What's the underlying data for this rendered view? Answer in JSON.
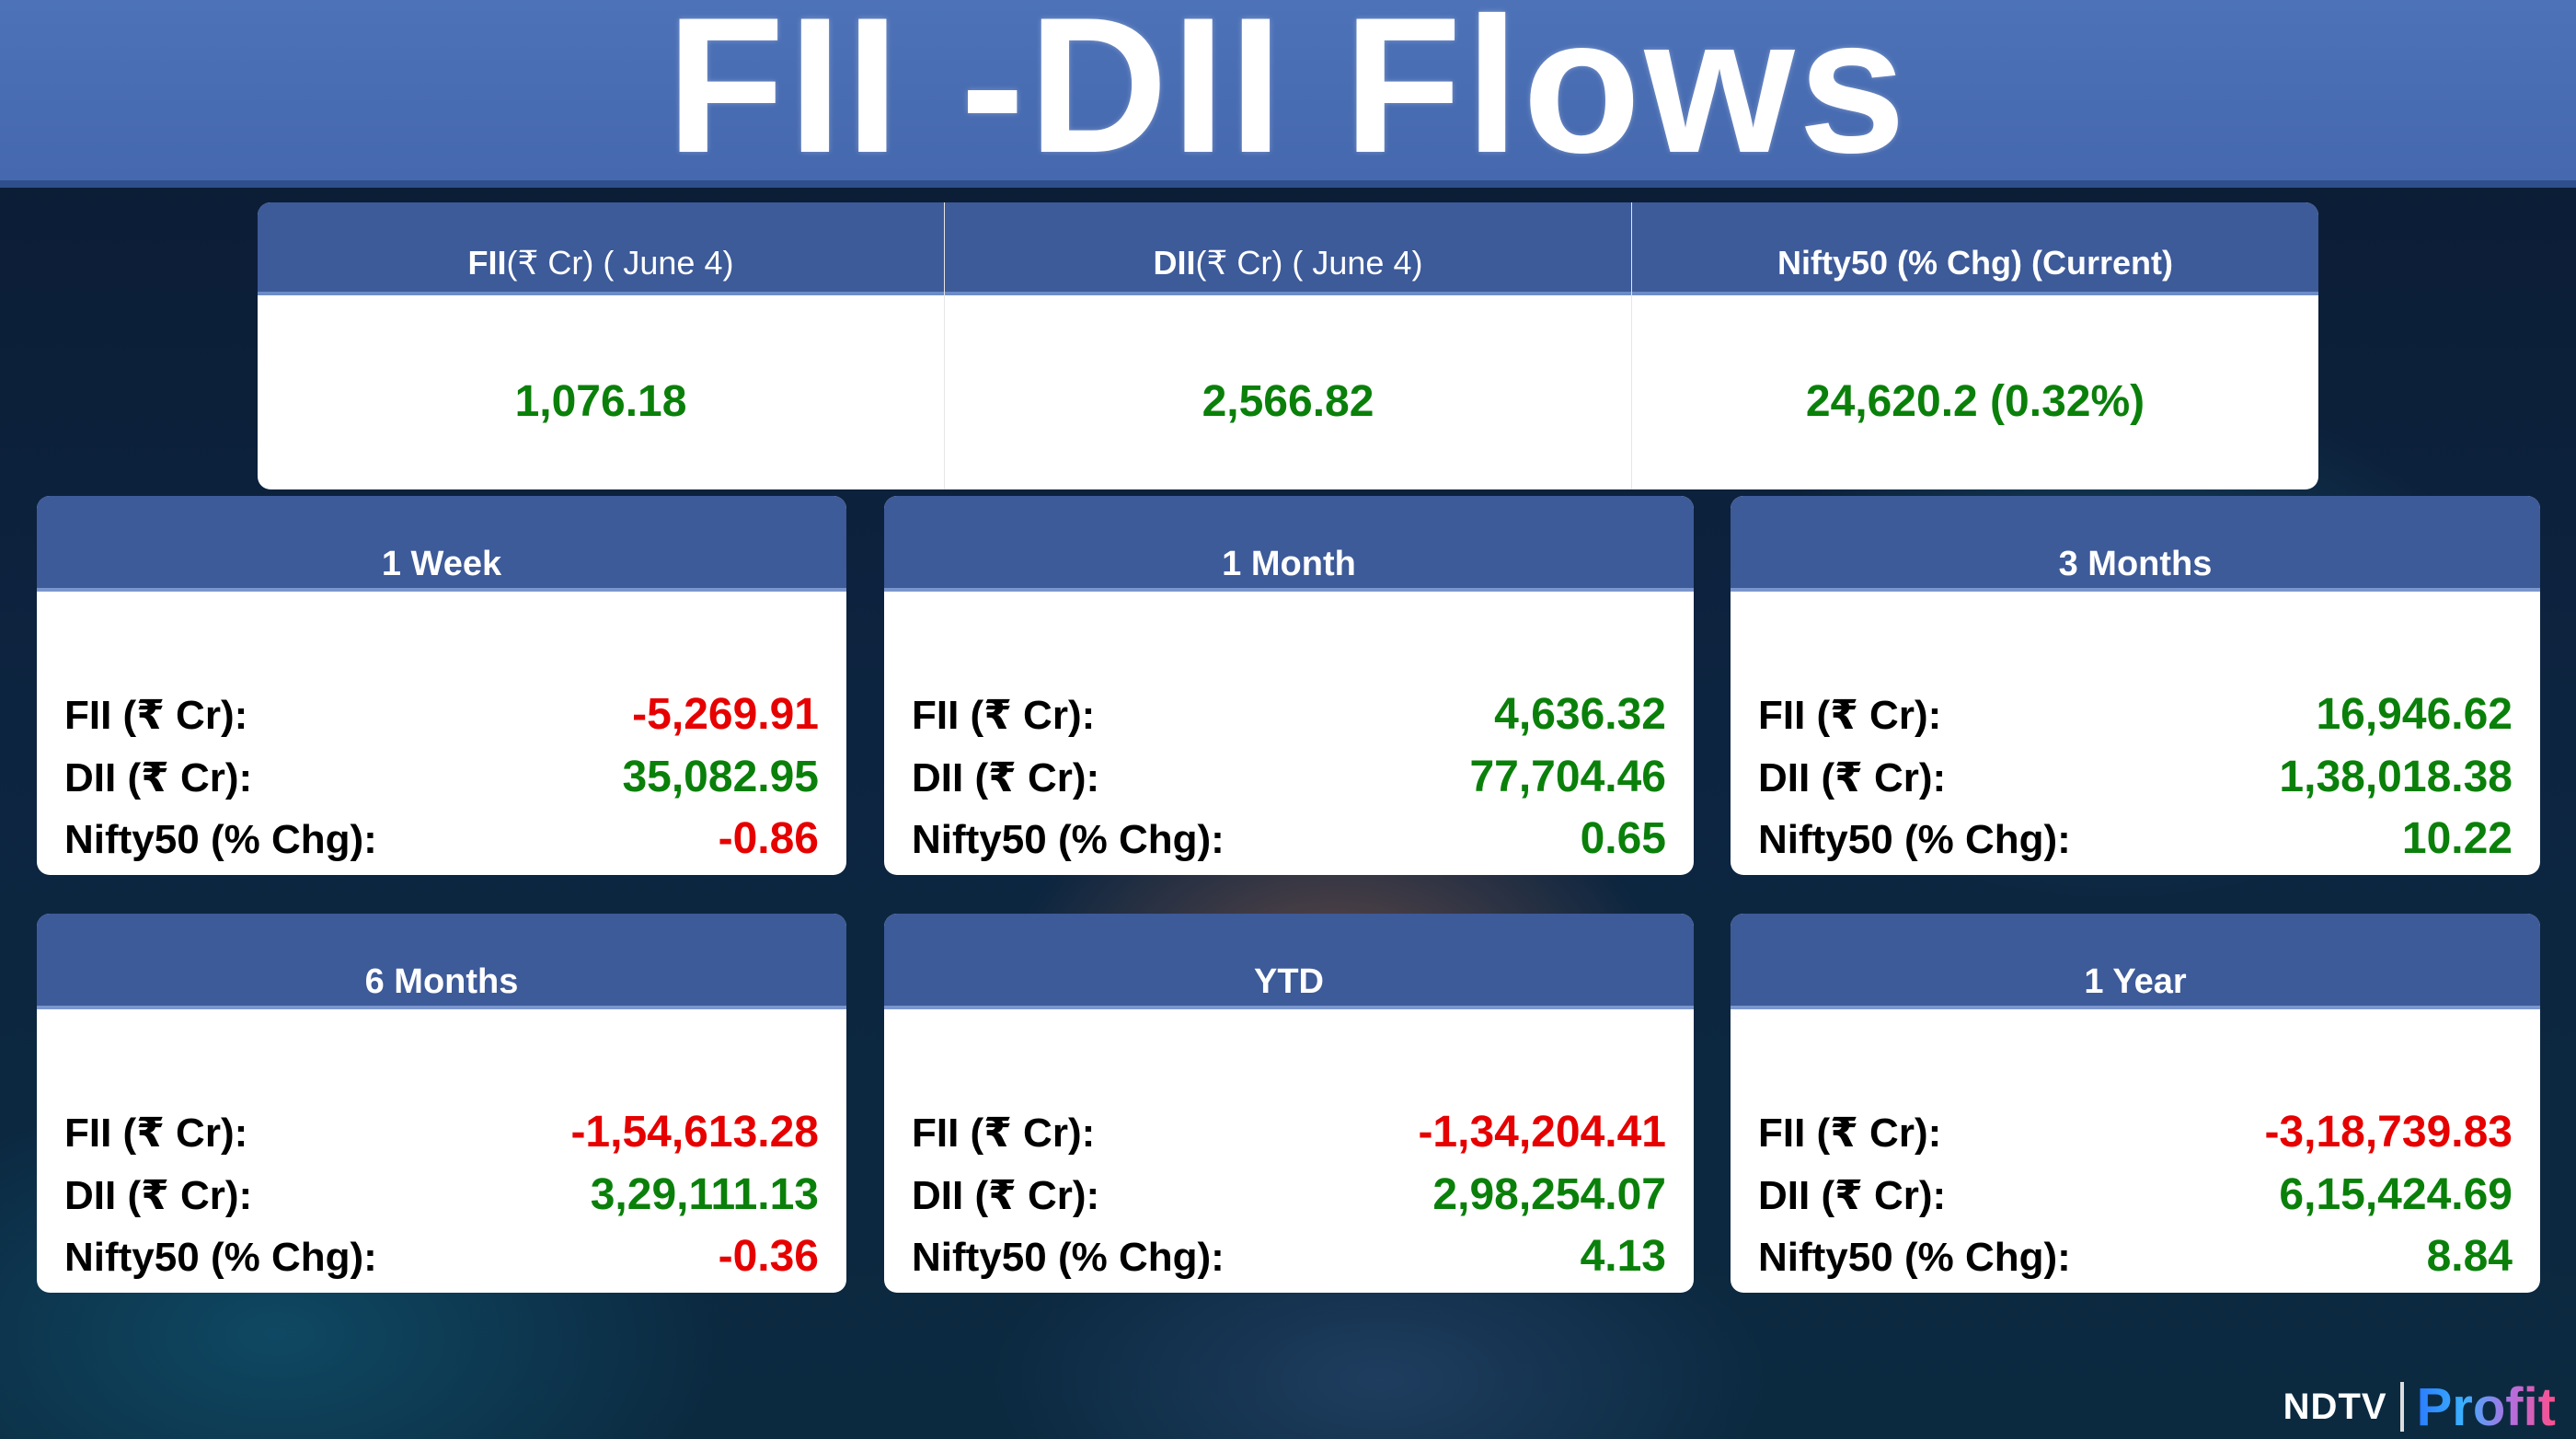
{
  "title": "FII -DII Flows",
  "summary": [
    {
      "label_bold": "FII",
      "label_rest": " (₹ Cr) ( June 4)",
      "value": "1,076.18",
      "status": "positive"
    },
    {
      "label_bold": "DII",
      "label_rest": " (₹ Cr) ( June 4)",
      "value": "2,566.82",
      "status": "positive"
    },
    {
      "label_bold": "Nifty50 (% Chg) (Current)",
      "label_rest": "",
      "value": "24,620.2 (0.32%)",
      "status": "positive"
    }
  ],
  "row_labels": {
    "fii": "FII (₹ Cr):",
    "dii": "DII (₹ Cr):",
    "nifty": "Nifty50 (% Chg):"
  },
  "periods": [
    {
      "title": "1 Week",
      "fii": "-5,269.91",
      "dii": "35,082.95",
      "nifty": "-0.86"
    },
    {
      "title": "1 Month",
      "fii": "4,636.32",
      "dii": "77,704.46",
      "nifty": "0.65"
    },
    {
      "title": "3 Months",
      "fii": "16,946.62",
      "dii": "1,38,018.38",
      "nifty": "10.22"
    },
    {
      "title": "6 Months",
      "fii": "-1,54,613.28",
      "dii": "3,29,111.13",
      "nifty": "-0.36"
    },
    {
      "title": "YTD",
      "fii": "-1,34,204.41",
      "dii": "2,98,254.07",
      "nifty": "4.13"
    },
    {
      "title": "1 Year",
      "fii": "-3,18,739.83",
      "dii": "6,15,424.69",
      "nifty": "8.84"
    }
  ],
  "colors": {
    "header": "#3d5a99",
    "banner": "#4a6fb5",
    "positive": "#0a800a",
    "negative": "#e60000"
  },
  "logo": {
    "brand": "NDTV",
    "product": "Profit"
  }
}
